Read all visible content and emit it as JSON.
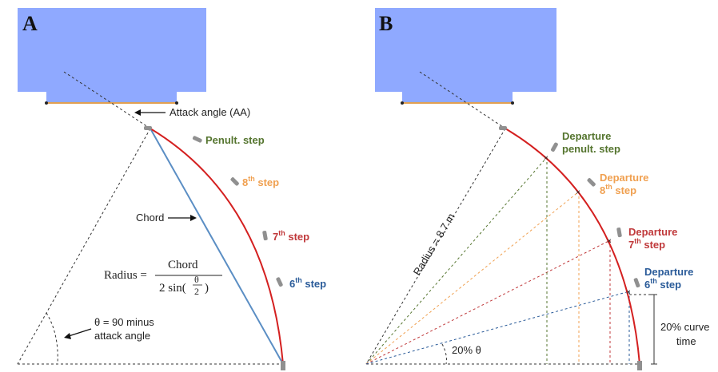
{
  "panel_a": {
    "label": "A",
    "attack_angle": "Attack angle (AA)",
    "penult_step": "Penult. step",
    "step8": {
      "num": "8",
      "sup": "th",
      "word": " step"
    },
    "step7": {
      "num": "7",
      "sup": "th",
      "word": " step"
    },
    "step6": {
      "num": "6",
      "sup": "th",
      "word": " step"
    },
    "chord": "Chord",
    "formula": {
      "lhs": "Radius = ",
      "numerator": "Chord",
      "denominator_prefix": "2 sin(",
      "theta": "θ",
      "two": "2",
      "denominator_suffix": ")"
    },
    "theta_line1": "θ = 90 minus",
    "theta_line2": "attack angle"
  },
  "panel_b": {
    "label": "B",
    "radius": "Radius = 8.7 m",
    "departure_penult_1": "Departure",
    "departure_penult_2": "penult. step",
    "departure_8_1": "Departure",
    "departure_8_num": "8",
    "departure_8_sup": "th",
    "departure_8_word": " step",
    "departure_7_1": "Departure",
    "departure_7_num": "7",
    "departure_7_sup": "th",
    "departure_7_word": " step",
    "departure_6_1": "Departure",
    "departure_6_num": "6",
    "departure_6_sup": "th",
    "departure_6_word": " step",
    "curve_time_1": "20% curve",
    "curve_time_2": "time",
    "theta_pct": "20% θ"
  },
  "colors": {
    "box_fill": "#8fa9ff",
    "bar_line": "#e2a050",
    "curve": "#d42020",
    "chord": "#5b8ec4",
    "penult": "#55752f",
    "step8": "#f0a050",
    "step7": "#c0393b",
    "step6": "#2a5b99",
    "marker": "#909090",
    "text": "#222222"
  }
}
